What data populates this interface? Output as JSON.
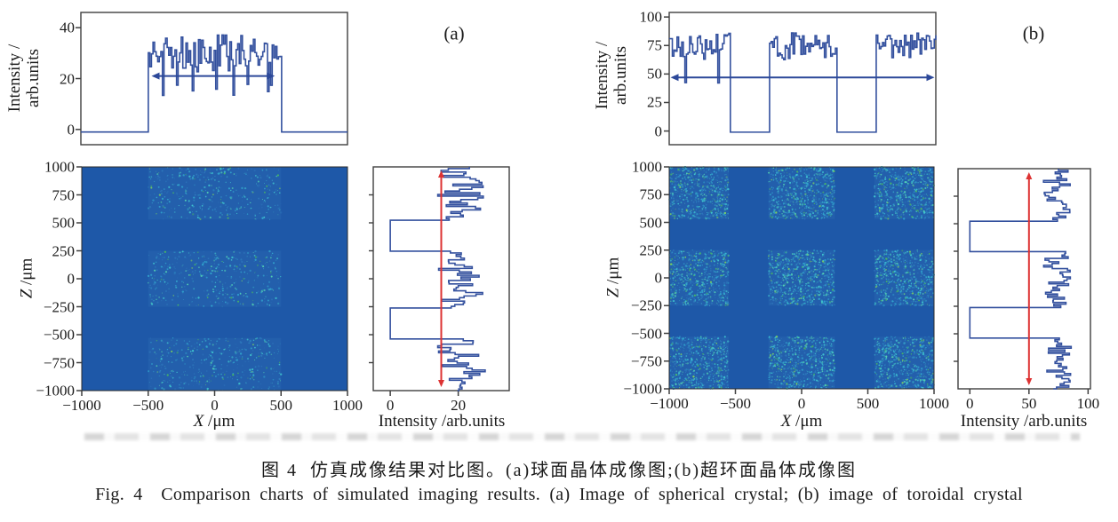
{
  "figure": {
    "caption_zh": "图 4  仿真成像结果对比图。(a)球面晶体成像图;(b)超环面晶体成像图",
    "caption_en": "Fig. 4  Comparison charts of simulated imaging results. (a) Image of spherical crystal; (b) image of toroidal crystal"
  },
  "chart_data": [
    {
      "panel": "a",
      "panel_label": "(a)",
      "plots": [
        {
          "name": "top_profile",
          "type": "line",
          "ylabel_lines": [
            "Intensity /",
            "arb.units"
          ],
          "xlim": [
            -1000,
            1000
          ],
          "ylim": [
            -6,
            46
          ],
          "yticks": [
            0,
            20,
            40
          ],
          "signal_bands": [
            [
              -500,
              500
            ]
          ],
          "baseline": -1,
          "band_mean": 30,
          "band_spread": 7,
          "band_min": 13,
          "band_max": 41,
          "spike_prob": 0.045,
          "arrow": {
            "y": 21,
            "x1": -470,
            "x2": 455
          },
          "line_color": "#33509e",
          "arrow_color": "#2c4899"
        },
        {
          "name": "image_map",
          "type": "heatmap",
          "xlabel_var": "X",
          "xlabel_rest": " /μm",
          "ylabel_var": "Z",
          "ylabel_rest": " /μm",
          "xlim": [
            -1000,
            1000
          ],
          "ylim": [
            -1000,
            1000
          ],
          "xticks": [
            -1000,
            -500,
            0,
            500,
            1000
          ],
          "yticks": [
            1000,
            750,
            500,
            250,
            0,
            -250,
            -500,
            -750,
            -1000
          ],
          "bands_x": [
            [
              -500,
              500
            ]
          ],
          "bands_z": [
            [
              530,
              1000
            ],
            [
              -250,
              250
            ],
            [
              -1000,
              -530
            ]
          ],
          "background": "#1e58a8",
          "speckle_colors": [
            "#2d76bb",
            "#31a3cd",
            "#3fc4cf",
            "#52cfb2",
            "#49b861",
            "#7dd160"
          ],
          "speckle_weights": [
            0.3,
            0.28,
            0.22,
            0.12,
            0.05,
            0.03
          ],
          "speckle_density": 0.045
        },
        {
          "name": "side_profile",
          "type": "line",
          "xlabel": "Intensity /arb.units",
          "xlim": [
            -5,
            35
          ],
          "zlim": [
            -1000,
            1000
          ],
          "xticks": [
            0,
            20
          ],
          "side_zticks": [
            750,
            500,
            250,
            0,
            -250,
            -500,
            -750
          ],
          "signal_bands": [
            [
              530,
              1000
            ],
            [
              -250,
              250
            ],
            [
              -1000,
              -530
            ]
          ],
          "baseline": 0,
          "band_mean": 21,
          "band_spread": 6,
          "band_min": 12,
          "band_max": 33,
          "red_line_x": 15,
          "red_color": "#dd3333",
          "line_color": "#33509e"
        }
      ]
    },
    {
      "panel": "b",
      "panel_label": "(b)",
      "plots": [
        {
          "name": "top_profile",
          "type": "line",
          "ylabel_lines": [
            "Intensity /",
            "arb.units"
          ],
          "xlim": [
            -1000,
            1000
          ],
          "ylim": [
            -12,
            104
          ],
          "yticks": [
            0,
            25,
            50,
            75,
            100
          ],
          "signal_bands": [
            [
              -1000,
              -550
            ],
            [
              -250,
              250
            ],
            [
              550,
              1000
            ]
          ],
          "baseline": -1,
          "band_mean": 75,
          "band_spread": 11,
          "band_min": 40,
          "band_max": 95,
          "spike_prob": 0.02,
          "arrow": {
            "y": 47,
            "x1": -990,
            "x2": 990
          },
          "line_color": "#33509e",
          "arrow_color": "#2c4899"
        },
        {
          "name": "image_map",
          "type": "heatmap",
          "xlabel_var": "X",
          "xlabel_rest": " /μm",
          "ylabel_var": "Z",
          "ylabel_rest": " /μm",
          "xlim": [
            -1000,
            1000
          ],
          "ylim": [
            -1000,
            1000
          ],
          "xticks": [
            -1000,
            -500,
            0,
            500,
            1000
          ],
          "yticks": [
            1000,
            750,
            500,
            250,
            0,
            -250,
            -500,
            -750,
            -1000
          ],
          "bands_x": [
            [
              -1000,
              -550
            ],
            [
              -250,
              250
            ],
            [
              550,
              1000
            ]
          ],
          "bands_z": [
            [
              530,
              1000
            ],
            [
              -250,
              250
            ],
            [
              -1000,
              -530
            ]
          ],
          "background": "#1e58a8",
          "speckle_colors": [
            "#2d76bb",
            "#31a3cd",
            "#3fc4cf",
            "#52cfb2",
            "#49b861",
            "#7dd160"
          ],
          "speckle_weights": [
            0.28,
            0.28,
            0.23,
            0.13,
            0.05,
            0.03
          ],
          "speckle_density": 0.17
        },
        {
          "name": "side_profile",
          "type": "line",
          "xlabel": "Intensity /arb.units",
          "xlim": [
            -10,
            102
          ],
          "zlim": [
            -1000,
            1000
          ],
          "xticks": [
            0,
            50,
            100
          ],
          "side_zticks": [
            750,
            500,
            250,
            0,
            -250,
            -500,
            -750
          ],
          "signal_bands": [
            [
              530,
              1000
            ],
            [
              -250,
              250
            ],
            [
              -1000,
              -530
            ]
          ],
          "baseline": 0,
          "band_mean": 74,
          "band_spread": 10,
          "band_min": 53,
          "band_max": 96,
          "red_line_x": 50,
          "red_color": "#dd3333",
          "line_color": "#33509e"
        }
      ]
    }
  ]
}
